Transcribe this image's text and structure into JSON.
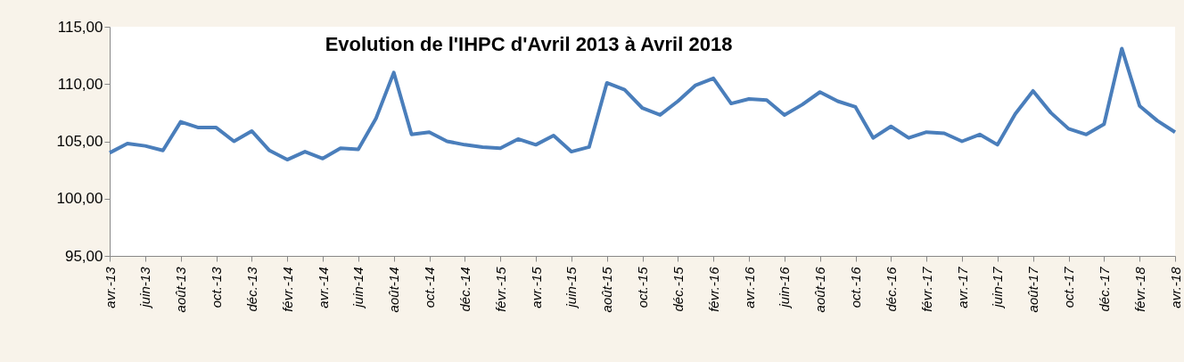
{
  "chart_data": {
    "type": "line",
    "title": "Evolution de l'IHPC d'Avril 2013 à Avril 2018",
    "categories": [
      "avr.-13",
      null,
      "juin-13",
      null,
      "août-13",
      null,
      "oct.-13",
      null,
      "déc.-13",
      null,
      "févr.-14",
      null,
      "avr.-14",
      null,
      "juin-14",
      null,
      "août-14",
      null,
      "oct.-14",
      null,
      "déc.-14",
      null,
      "févr.-15",
      null,
      "avr.-15",
      null,
      "juin-15",
      null,
      "août-15",
      null,
      "oct.-15",
      null,
      "déc.-15",
      null,
      "févr.-16",
      null,
      "avr.-16",
      null,
      "juin-16",
      null,
      "août-16",
      null,
      "oct.-16",
      null,
      "déc.-16",
      null,
      "févr.-17",
      null,
      "avr.-17",
      null,
      "juin-17",
      null,
      "août-17",
      null,
      "oct.-17",
      null,
      "déc.-17",
      null,
      "févr.-18",
      null,
      "avr.-18"
    ],
    "series": [
      {
        "color": "#4a7ebb",
        "values": [
          104.0,
          104.8,
          104.6,
          104.2,
          106.7,
          106.2,
          106.2,
          105.0,
          105.9,
          104.2,
          103.4,
          104.1,
          103.5,
          104.4,
          104.3,
          107.0,
          111.0,
          105.6,
          105.8,
          105.0,
          104.7,
          104.5,
          104.4,
          105.2,
          104.7,
          105.5,
          104.1,
          104.5,
          110.1,
          109.5,
          107.9,
          107.3,
          108.5,
          109.9,
          110.5,
          108.3,
          108.7,
          108.6,
          107.3,
          108.2,
          109.3,
          108.5,
          108.0,
          105.3,
          106.3,
          105.3,
          105.8,
          105.7,
          105.0,
          105.6,
          104.7,
          107.4,
          109.4,
          107.5,
          106.1,
          105.6,
          106.5,
          113.1,
          108.1,
          106.8,
          105.8
        ]
      }
    ],
    "ylim": [
      95,
      115
    ],
    "yticks": [
      {
        "value": 95,
        "label": "95,00"
      },
      {
        "value": 100,
        "label": "100,00"
      },
      {
        "value": 105,
        "label": "105,00"
      },
      {
        "value": 110,
        "label": "110,00"
      },
      {
        "value": 115,
        "label": "115,00"
      }
    ],
    "grid": false,
    "marker": "none",
    "line_style": "solid"
  }
}
